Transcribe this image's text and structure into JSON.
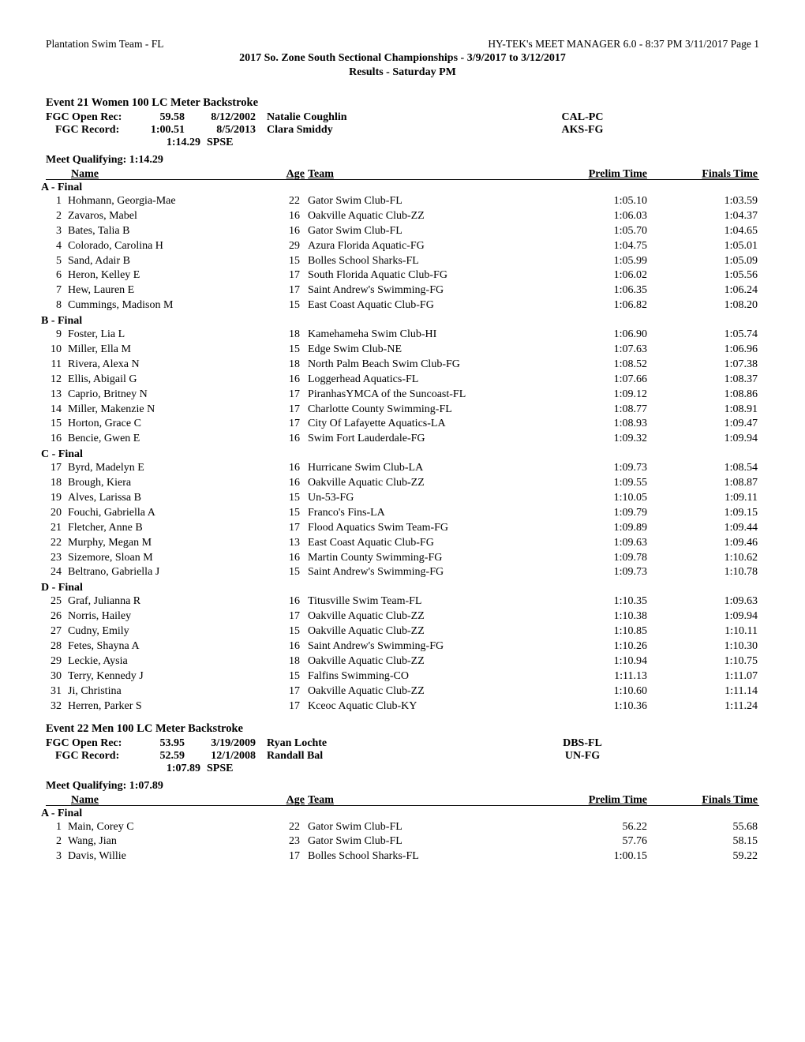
{
  "header": {
    "left": "Plantation Swim Team - FL",
    "right": "HY-TEK's MEET MANAGER 6.0 - 8:37 PM  3/11/2017  Page 1",
    "title": "2017 So. Zone South Sectional Championships - 3/9/2017 to 3/12/2017",
    "subtitle": "Results - Saturday PM"
  },
  "event21": {
    "title": "Event 21  Women 100 LC Meter Backstroke",
    "rec": [
      {
        "label": "FGC Open Rec:",
        "time": "59.58",
        "date": "8/12/2002",
        "holder": "Natalie Coughlin",
        "loc": "CAL-PC"
      },
      {
        "label": "FGC Record:",
        "time": "1:00.51",
        "date": "8/5/2013",
        "holder": "Clara Smiddy",
        "loc": "AKS-FG"
      }
    ],
    "standard_time": "1:14.29",
    "standard_lbl": "SPSE",
    "mq": "Meet Qualifying:  1:14.29",
    "colheads": {
      "name": "Name",
      "age": "Age",
      "team": "Team",
      "pt": "Prelim Time",
      "ft": "Finals Time"
    },
    "sections": [
      {
        "label": "A - Final",
        "rows": [
          {
            "pl": "1",
            "nm": "Hohmann, Georgia-Mae",
            "age": "22",
            "team": "Gator Swim Club-FL",
            "pt": "1:05.10",
            "ft": "1:03.59"
          },
          {
            "pl": "2",
            "nm": "Zavaros, Mabel",
            "age": "16",
            "team": "Oakville Aquatic Club-ZZ",
            "pt": "1:06.03",
            "ft": "1:04.37"
          },
          {
            "pl": "3",
            "nm": "Bates, Talia B",
            "age": "16",
            "team": "Gator Swim Club-FL",
            "pt": "1:05.70",
            "ft": "1:04.65"
          },
          {
            "pl": "4",
            "nm": "Colorado, Carolina H",
            "age": "29",
            "team": "Azura Florida Aquatic-FG",
            "pt": "1:04.75",
            "ft": "1:05.01"
          },
          {
            "pl": "5",
            "nm": "Sand, Adair B",
            "age": "15",
            "team": "Bolles School Sharks-FL",
            "pt": "1:05.99",
            "ft": "1:05.09"
          },
          {
            "pl": "6",
            "nm": "Heron, Kelley E",
            "age": "17",
            "team": "South Florida Aquatic Club-FG",
            "pt": "1:06.02",
            "ft": "1:05.56"
          },
          {
            "pl": "7",
            "nm": "Hew, Lauren E",
            "age": "17",
            "team": "Saint Andrew's Swimming-FG",
            "pt": "1:06.35",
            "ft": "1:06.24"
          },
          {
            "pl": "8",
            "nm": "Cummings, Madison M",
            "age": "15",
            "team": "East Coast Aquatic Club-FG",
            "pt": "1:06.82",
            "ft": "1:08.20"
          }
        ]
      },
      {
        "label": "B - Final",
        "rows": [
          {
            "pl": "9",
            "nm": "Foster, Lia L",
            "age": "18",
            "team": "Kamehameha Swim Club-HI",
            "pt": "1:06.90",
            "ft": "1:05.74"
          },
          {
            "pl": "10",
            "nm": "Miller, Ella M",
            "age": "15",
            "team": "Edge Swim Club-NE",
            "pt": "1:07.63",
            "ft": "1:06.96"
          },
          {
            "pl": "11",
            "nm": "Rivera, Alexa N",
            "age": "18",
            "team": "North Palm Beach Swim Club-FG",
            "pt": "1:08.52",
            "ft": "1:07.38"
          },
          {
            "pl": "12",
            "nm": "Ellis, Abigail G",
            "age": "16",
            "team": "Loggerhead Aquatics-FL",
            "pt": "1:07.66",
            "ft": "1:08.37"
          },
          {
            "pl": "13",
            "nm": "Caprio, Britney N",
            "age": "17",
            "team": "PiranhasYMCA of the Suncoast-FL",
            "pt": "1:09.12",
            "ft": "1:08.86"
          },
          {
            "pl": "14",
            "nm": "Miller, Makenzie N",
            "age": "17",
            "team": "Charlotte County Swimming-FL",
            "pt": "1:08.77",
            "ft": "1:08.91"
          },
          {
            "pl": "15",
            "nm": "Horton, Grace C",
            "age": "17",
            "team": "City Of Lafayette Aquatics-LA",
            "pt": "1:08.93",
            "ft": "1:09.47"
          },
          {
            "pl": "16",
            "nm": "Bencie, Gwen E",
            "age": "16",
            "team": "Swim Fort Lauderdale-FG",
            "pt": "1:09.32",
            "ft": "1:09.94"
          }
        ]
      },
      {
        "label": "C - Final",
        "rows": [
          {
            "pl": "17",
            "nm": "Byrd, Madelyn E",
            "age": "16",
            "team": "Hurricane Swim Club-LA",
            "pt": "1:09.73",
            "ft": "1:08.54"
          },
          {
            "pl": "18",
            "nm": "Brough, Kiera",
            "age": "16",
            "team": "Oakville Aquatic Club-ZZ",
            "pt": "1:09.55",
            "ft": "1:08.87"
          },
          {
            "pl": "19",
            "nm": "Alves, Larissa B",
            "age": "15",
            "team": "Un-53-FG",
            "pt": "1:10.05",
            "ft": "1:09.11"
          },
          {
            "pl": "20",
            "nm": "Fouchi, Gabriella A",
            "age": "15",
            "team": "Franco's Fins-LA",
            "pt": "1:09.79",
            "ft": "1:09.15"
          },
          {
            "pl": "21",
            "nm": "Fletcher, Anne B",
            "age": "17",
            "team": "Flood Aquatics Swim Team-FG",
            "pt": "1:09.89",
            "ft": "1:09.44"
          },
          {
            "pl": "22",
            "nm": "Murphy, Megan M",
            "age": "13",
            "team": "East Coast Aquatic Club-FG",
            "pt": "1:09.63",
            "ft": "1:09.46"
          },
          {
            "pl": "23",
            "nm": "Sizemore, Sloan M",
            "age": "16",
            "team": "Martin County Swimming-FG",
            "pt": "1:09.78",
            "ft": "1:10.62"
          },
          {
            "pl": "24",
            "nm": "Beltrano, Gabriella J",
            "age": "15",
            "team": "Saint Andrew's Swimming-FG",
            "pt": "1:09.73",
            "ft": "1:10.78"
          }
        ]
      },
      {
        "label": "D - Final",
        "rows": [
          {
            "pl": "25",
            "nm": "Graf, Julianna R",
            "age": "16",
            "team": "Titusville Swim Team-FL",
            "pt": "1:10.35",
            "ft": "1:09.63"
          },
          {
            "pl": "26",
            "nm": "Norris, Hailey",
            "age": "17",
            "team": "Oakville Aquatic Club-ZZ",
            "pt": "1:10.38",
            "ft": "1:09.94"
          },
          {
            "pl": "27",
            "nm": "Cudny, Emily",
            "age": "15",
            "team": "Oakville Aquatic Club-ZZ",
            "pt": "1:10.85",
            "ft": "1:10.11"
          },
          {
            "pl": "28",
            "nm": "Fetes, Shayna A",
            "age": "16",
            "team": "Saint Andrew's Swimming-FG",
            "pt": "1:10.26",
            "ft": "1:10.30"
          },
          {
            "pl": "29",
            "nm": "Leckie, Aysia",
            "age": "18",
            "team": "Oakville Aquatic Club-ZZ",
            "pt": "1:10.94",
            "ft": "1:10.75"
          },
          {
            "pl": "30",
            "nm": "Terry, Kennedy J",
            "age": "15",
            "team": "Falfins Swimming-CO",
            "pt": "1:11.13",
            "ft": "1:11.07"
          },
          {
            "pl": "31",
            "nm": "Ji, Christina",
            "age": "17",
            "team": "Oakville Aquatic Club-ZZ",
            "pt": "1:10.60",
            "ft": "1:11.14"
          },
          {
            "pl": "32",
            "nm": "Herren, Parker S",
            "age": "17",
            "team": "Kceoc Aquatic Club-KY",
            "pt": "1:10.36",
            "ft": "1:11.24"
          }
        ]
      }
    ]
  },
  "event22": {
    "title": "Event 22  Men 100 LC Meter Backstroke",
    "rec": [
      {
        "label": "FGC Open Rec:",
        "time": "53.95",
        "date": "3/19/2009",
        "holder": "Ryan Lochte",
        "loc": "DBS-FL"
      },
      {
        "label": "FGC Record:",
        "time": "52.59",
        "date": "12/1/2008",
        "holder": "Randall Bal",
        "loc": "UN-FG"
      }
    ],
    "standard_time": "1:07.89",
    "standard_lbl": "SPSE",
    "mq": "Meet Qualifying:  1:07.89",
    "colheads": {
      "name": "Name",
      "age": "Age",
      "team": "Team",
      "pt": "Prelim Time",
      "ft": "Finals Time"
    },
    "sections": [
      {
        "label": "A - Final",
        "rows": [
          {
            "pl": "1",
            "nm": "Main, Corey C",
            "age": "22",
            "team": "Gator Swim Club-FL",
            "pt": "56.22",
            "ft": "55.68"
          },
          {
            "pl": "2",
            "nm": "Wang, Jian",
            "age": "23",
            "team": "Gator Swim Club-FL",
            "pt": "57.76",
            "ft": "58.15"
          },
          {
            "pl": "3",
            "nm": "Davis, Willie",
            "age": "17",
            "team": "Bolles School Sharks-FL",
            "pt": "1:00.15",
            "ft": "59.22"
          }
        ]
      }
    ]
  }
}
